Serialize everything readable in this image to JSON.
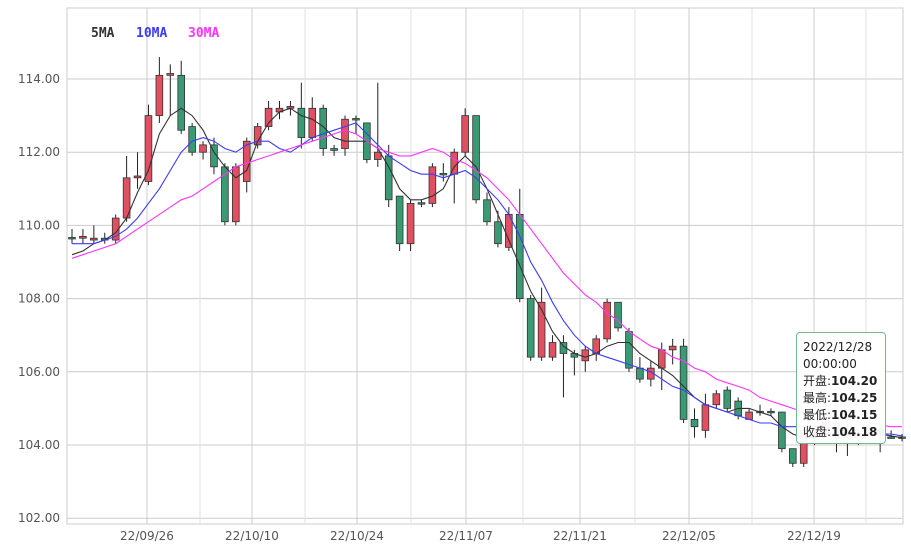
{
  "chart_data": {
    "type": "candlestick",
    "ylim": [
      102,
      115
    ],
    "y_ticks": [
      "102.00",
      "104.00",
      "106.00",
      "108.00",
      "110.00",
      "112.00",
      "114.00"
    ],
    "x_ticks": [
      "22/09/26",
      "22/10/10",
      "22/10/24",
      "22/11/07",
      "22/11/21",
      "22/12/05",
      "22/12/19"
    ],
    "grid": true,
    "legend": [
      {
        "name": "5MA",
        "color": "#333333"
      },
      {
        "name": "10MA",
        "color": "#3b3bff"
      },
      {
        "name": "30MA",
        "color": "#ff33ff"
      }
    ],
    "colors": {
      "up": "#e05060",
      "down": "#3a9a74"
    },
    "candles": [
      [
        109.65,
        109.65,
        109.9,
        109.5
      ],
      [
        109.65,
        109.7,
        109.9,
        109.5
      ],
      [
        109.6,
        109.65,
        110.0,
        109.5
      ],
      [
        109.65,
        109.6,
        109.8,
        109.5
      ],
      [
        109.6,
        110.2,
        110.3,
        109.5
      ],
      [
        110.2,
        111.3,
        111.9,
        110.1
      ],
      [
        111.3,
        111.35,
        112.0,
        111.0
      ],
      [
        111.2,
        113.0,
        113.3,
        111.1
      ],
      [
        113.0,
        114.1,
        114.6,
        112.8
      ],
      [
        114.1,
        114.15,
        114.4,
        113.0
      ],
      [
        114.1,
        112.6,
        114.5,
        112.5
      ],
      [
        112.7,
        112.0,
        112.8,
        111.9
      ],
      [
        112.0,
        112.2,
        112.3,
        111.8
      ],
      [
        112.2,
        111.6,
        112.4,
        111.4
      ],
      [
        111.6,
        110.1,
        111.7,
        110.0
      ],
      [
        110.1,
        111.6,
        111.7,
        110.0
      ],
      [
        111.2,
        112.3,
        112.4,
        110.9
      ],
      [
        112.2,
        112.7,
        112.8,
        112.1
      ],
      [
        112.7,
        113.2,
        113.4,
        112.6
      ],
      [
        113.1,
        113.2,
        113.4,
        112.9
      ],
      [
        113.2,
        113.25,
        113.4,
        113.0
      ],
      [
        113.2,
        112.4,
        113.9,
        112.1
      ],
      [
        112.4,
        113.2,
        113.5,
        112.3
      ],
      [
        113.2,
        112.1,
        113.3,
        111.9
      ],
      [
        112.1,
        112.05,
        112.2,
        111.9
      ],
      [
        112.1,
        112.9,
        113.0,
        111.9
      ],
      [
        112.9,
        112.9,
        113.0,
        112.5
      ],
      [
        112.8,
        111.8,
        112.8,
        111.7
      ],
      [
        111.8,
        112.0,
        113.9,
        111.6
      ],
      [
        111.9,
        110.7,
        112.2,
        110.5
      ],
      [
        110.8,
        109.5,
        110.8,
        109.3
      ],
      [
        109.5,
        110.6,
        110.7,
        109.3
      ],
      [
        110.6,
        110.6,
        110.7,
        110.5
      ],
      [
        110.6,
        111.6,
        111.7,
        110.5
      ],
      [
        111.4,
        111.4,
        111.7,
        111.2
      ],
      [
        111.4,
        112.0,
        112.1,
        110.6
      ],
      [
        112.0,
        113.0,
        113.2,
        111.9
      ],
      [
        113.0,
        110.7,
        113.0,
        110.6
      ],
      [
        110.7,
        110.1,
        110.9,
        110.0
      ],
      [
        110.1,
        109.5,
        110.4,
        109.4
      ],
      [
        109.4,
        110.3,
        110.5,
        109.3
      ],
      [
        110.3,
        108.0,
        111.0,
        107.9
      ],
      [
        108.0,
        106.4,
        108.1,
        106.3
      ],
      [
        106.4,
        107.9,
        108.3,
        106.3
      ],
      [
        106.4,
        106.8,
        107.0,
        106.3
      ],
      [
        106.8,
        106.5,
        107.0,
        105.3
      ],
      [
        106.5,
        106.4,
        106.6,
        105.9
      ],
      [
        106.3,
        106.6,
        106.7,
        106.0
      ],
      [
        106.5,
        106.9,
        107.0,
        106.3
      ],
      [
        106.9,
        107.9,
        108.0,
        106.8
      ],
      [
        107.9,
        107.2,
        107.9,
        107.1
      ],
      [
        107.1,
        106.1,
        107.2,
        106.0
      ],
      [
        106.1,
        105.8,
        106.4,
        105.7
      ],
      [
        105.8,
        106.1,
        106.3,
        105.6
      ],
      [
        106.1,
        106.6,
        106.8,
        105.5
      ],
      [
        106.6,
        106.7,
        106.9,
        106.2
      ],
      [
        106.7,
        104.7,
        106.9,
        104.6
      ],
      [
        104.7,
        104.5,
        105.0,
        104.2
      ],
      [
        104.4,
        105.1,
        105.4,
        104.2
      ],
      [
        105.1,
        105.4,
        105.5,
        105.0
      ],
      [
        105.5,
        105.0,
        105.6,
        104.9
      ],
      [
        105.2,
        104.8,
        105.3,
        104.7
      ],
      [
        104.7,
        104.9,
        105.0,
        104.7
      ],
      [
        104.9,
        104.9,
        105.1,
        104.8
      ],
      [
        104.9,
        104.9,
        105.0,
        104.8
      ],
      [
        104.9,
        103.9,
        104.9,
        103.8
      ],
      [
        103.9,
        103.5,
        103.9,
        103.4
      ],
      [
        103.5,
        104.4,
        104.5,
        103.4
      ],
      [
        104.2,
        104.3,
        104.4,
        104.0
      ],
      [
        104.3,
        104.6,
        104.7,
        104.2
      ],
      [
        104.6,
        104.2,
        104.7,
        103.8
      ],
      [
        104.2,
        104.3,
        104.6,
        103.7
      ],
      [
        104.2,
        104.3,
        104.4,
        104.0
      ],
      [
        104.3,
        104.5,
        104.6,
        104.2
      ],
      [
        104.4,
        104.3,
        104.5,
        103.8
      ],
      [
        104.2,
        104.2,
        104.4,
        104.2
      ],
      [
        104.2,
        104.2,
        104.3,
        104.1
      ]
    ],
    "ma": {
      "5MA": [
        109.2,
        109.3,
        109.5,
        109.6,
        109.8,
        110.2,
        110.9,
        111.5,
        112.5,
        113.0,
        113.2,
        113.0,
        112.6,
        112.0,
        111.6,
        111.3,
        111.5,
        112.3,
        112.8,
        113.1,
        113.2,
        113.0,
        112.9,
        112.7,
        112.4,
        112.3,
        112.3,
        112.3,
        112.1,
        111.6,
        111.0,
        110.7,
        110.7,
        110.8,
        111.0,
        111.6,
        111.9,
        111.6,
        111.0,
        110.3,
        109.6,
        108.9,
        108.2,
        107.7,
        107.1,
        106.7,
        106.5,
        106.4,
        106.5,
        106.7,
        106.8,
        106.8,
        106.5,
        106.3,
        106.1,
        105.9,
        105.6,
        105.3,
        105.1,
        105.0,
        104.9,
        105.0,
        105.0,
        104.9,
        104.8,
        104.5,
        104.3,
        104.2,
        104.2,
        104.3,
        104.35,
        104.35,
        104.3,
        104.3,
        104.3,
        104.25,
        104.2
      ],
      "10MA": [
        109.5,
        109.5,
        109.5,
        109.6,
        109.7,
        109.9,
        110.2,
        110.6,
        111.0,
        111.5,
        112.0,
        112.3,
        112.4,
        112.3,
        112.1,
        112.0,
        112.2,
        112.3,
        112.3,
        112.1,
        112.0,
        112.2,
        112.4,
        112.5,
        112.6,
        112.7,
        112.8,
        112.5,
        112.2,
        111.9,
        111.7,
        111.5,
        111.4,
        111.4,
        111.3,
        111.4,
        111.5,
        111.3,
        111.0,
        110.7,
        110.3,
        109.7,
        109.0,
        108.5,
        107.9,
        107.4,
        107.0,
        106.7,
        106.5,
        106.4,
        106.3,
        106.2,
        106.1,
        106.0,
        105.8,
        105.6,
        105.5,
        105.3,
        105.1,
        105.0,
        104.9,
        104.8,
        104.7,
        104.6,
        104.6,
        104.5,
        104.5,
        104.5,
        104.5,
        104.5,
        104.4,
        104.4,
        104.4,
        104.35,
        104.3,
        104.3,
        104.25
      ],
      "30MA": [
        109.1,
        109.2,
        109.3,
        109.4,
        109.5,
        109.7,
        109.9,
        110.1,
        110.3,
        110.5,
        110.7,
        110.8,
        111.0,
        111.2,
        111.4,
        111.6,
        111.7,
        111.8,
        111.9,
        112.0,
        112.1,
        112.2,
        112.3,
        112.4,
        112.5,
        112.6,
        112.5,
        112.3,
        112.1,
        112.0,
        111.9,
        111.9,
        112.0,
        112.1,
        112.0,
        111.8,
        111.7,
        111.5,
        111.3,
        111.0,
        110.7,
        110.3,
        109.9,
        109.5,
        109.1,
        108.7,
        108.4,
        108.1,
        107.9,
        107.6,
        107.4,
        107.1,
        106.9,
        106.7,
        106.6,
        106.4,
        106.3,
        106.1,
        106.0,
        105.8,
        105.7,
        105.6,
        105.5,
        105.3,
        105.2,
        105.1,
        105.0,
        104.9,
        104.85,
        104.8,
        104.75,
        104.7,
        104.65,
        104.6,
        104.55,
        104.5,
        104.5
      ]
    },
    "tooltip": {
      "date": "2022/12/28",
      "time": "00:00:00",
      "open_label": "开盘:",
      "open": "104.20",
      "high_label": "最高:",
      "high": "104.25",
      "low_label": "最低:",
      "low": "104.15",
      "close_label": "收盘:",
      "close": "104.18"
    }
  }
}
